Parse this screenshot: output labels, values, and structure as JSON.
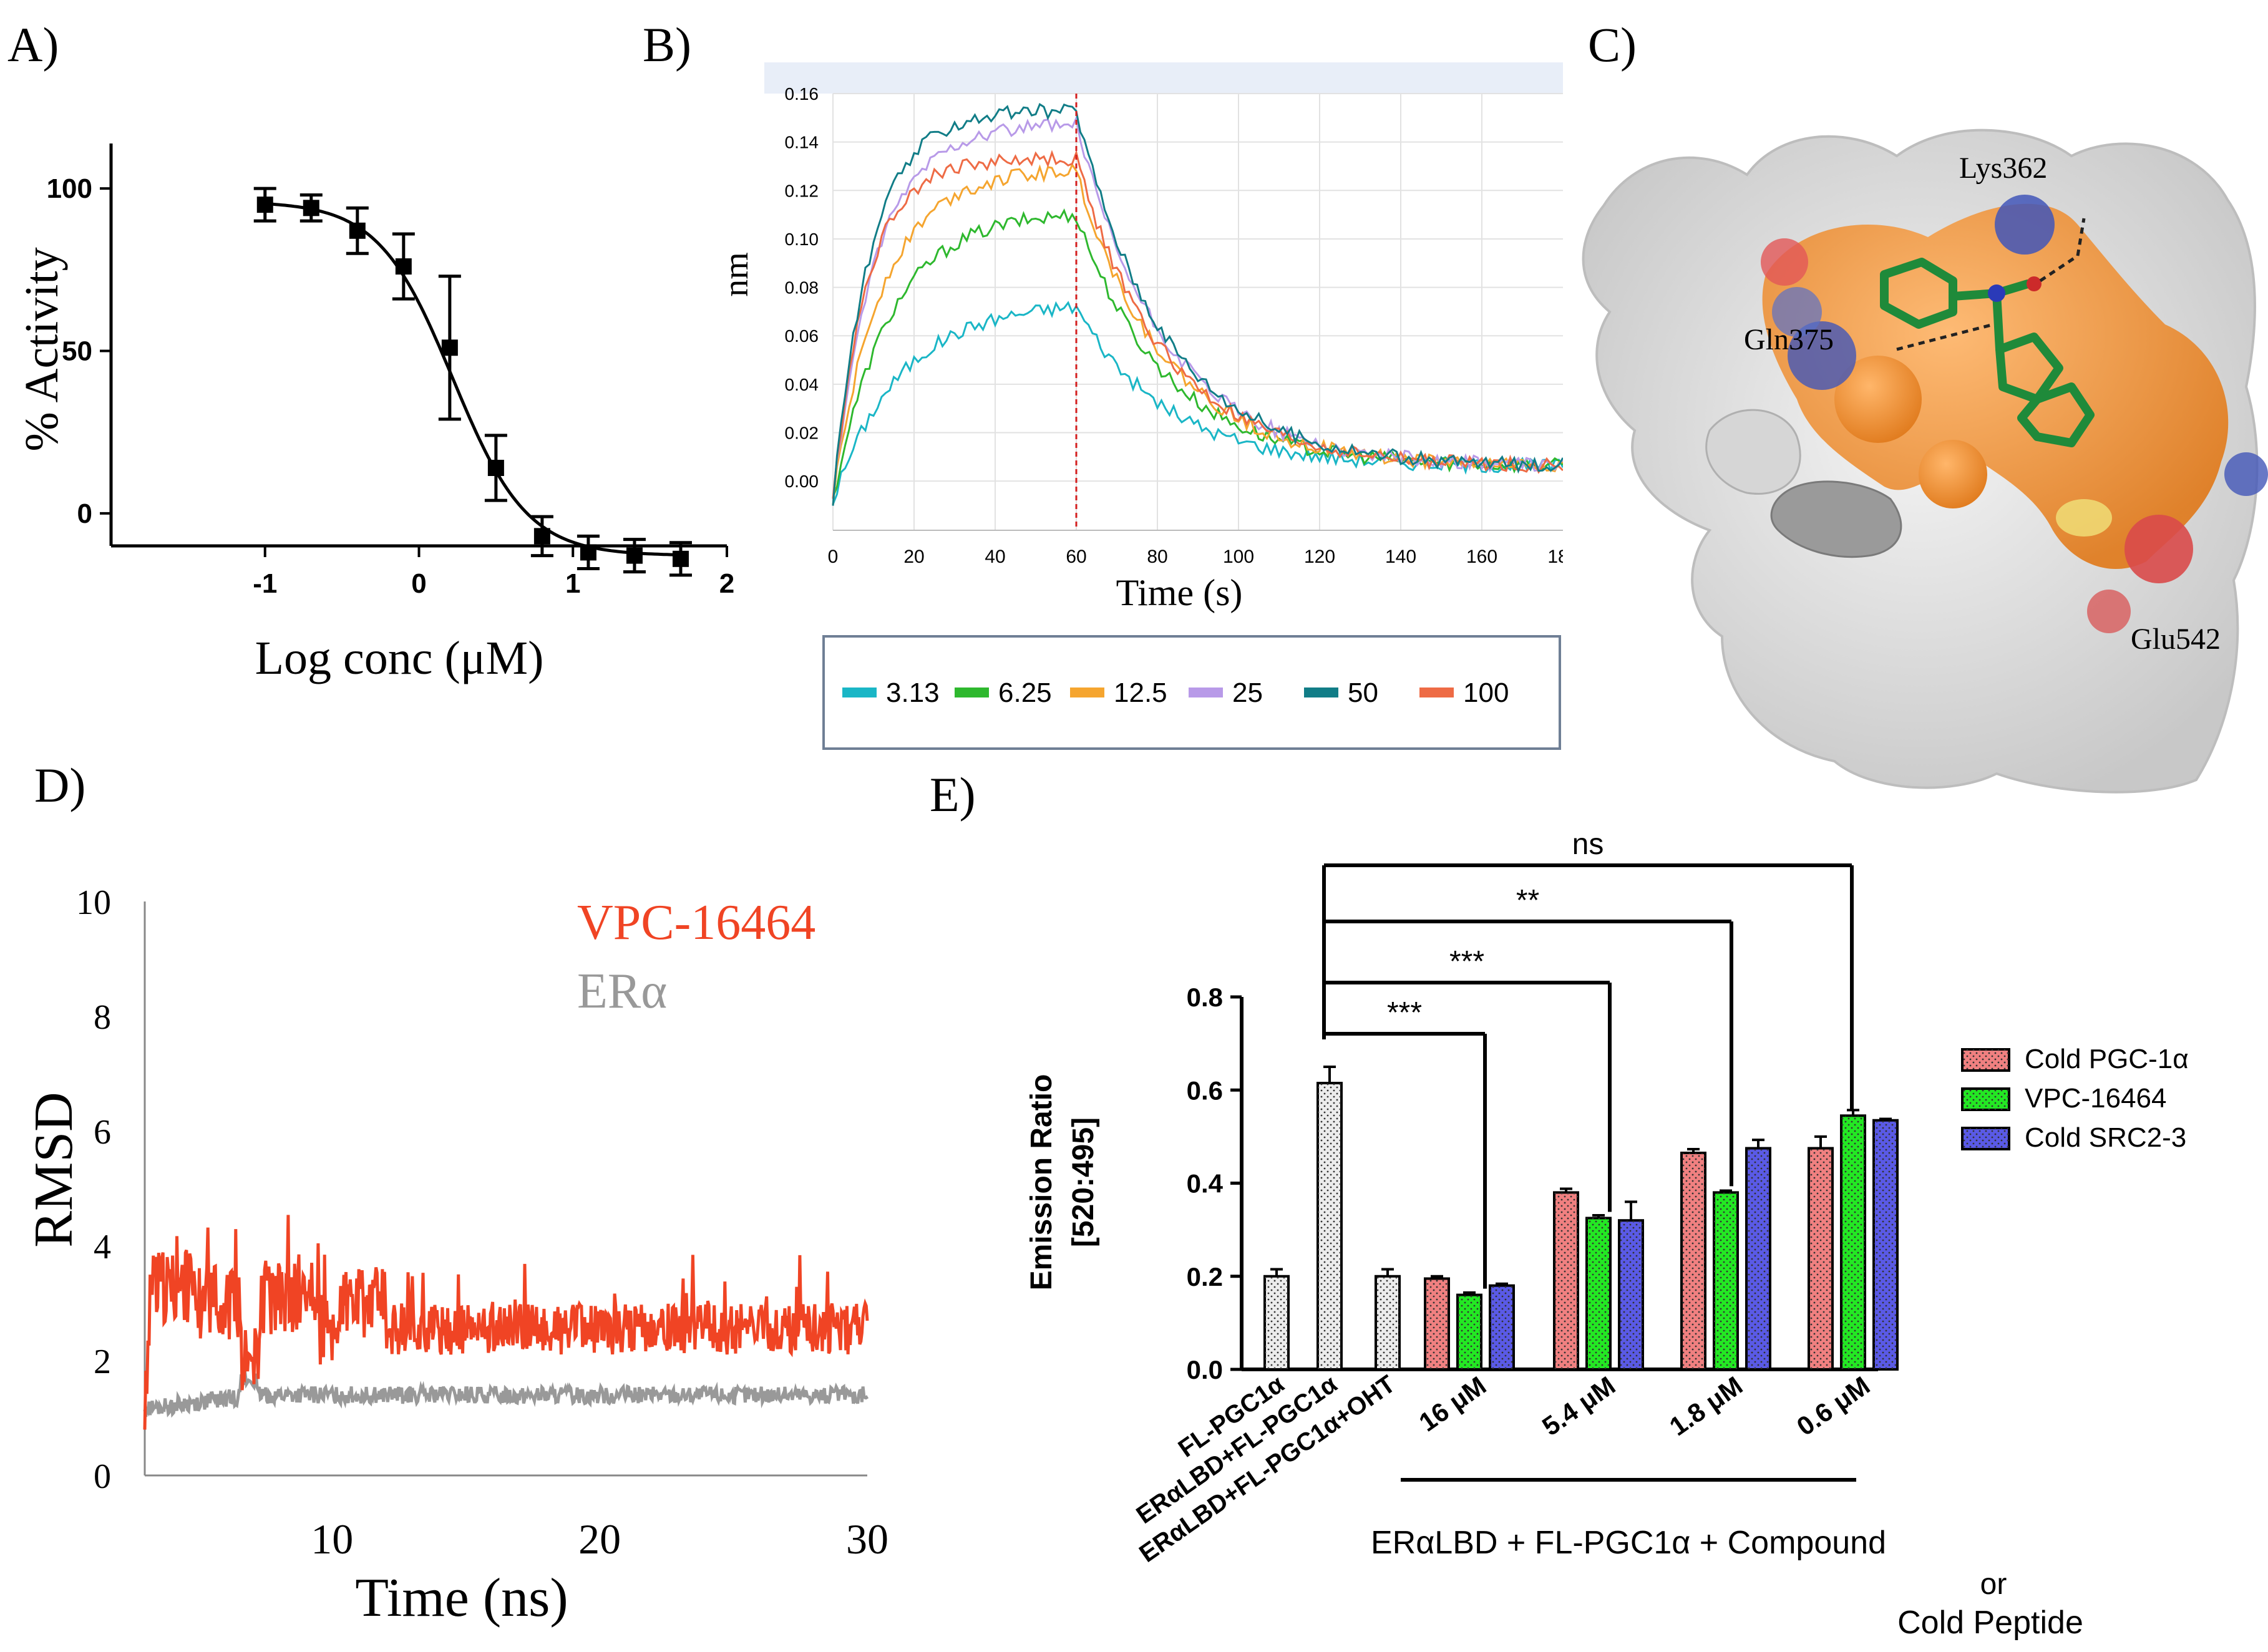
{
  "panel_labels": {
    "a": "A)",
    "b": "B)",
    "c": "C)",
    "d": "D)",
    "e": "E)"
  },
  "colors": {
    "black": "#000000",
    "vpc": "#f04424",
    "era": "#999999",
    "s3_13": "#1ab6c6",
    "s6_25": "#2eb82e",
    "s12_5": "#f5a52f",
    "s25": "#b89ae8",
    "s50": "#117d87",
    "s100": "#ee6b45",
    "cold_pgc": "#f08080",
    "vpc_green": "#23e823",
    "cold_src": "#5a5ae6",
    "control_fill": "#ececec"
  },
  "chart_data": [
    {
      "id": "A",
      "type": "scatter",
      "xlabel": "Log conc (μM)",
      "ylabel": "% Activity",
      "xlim": [
        -2,
        2
      ],
      "ylim": [
        -10,
        110
      ],
      "xticks": [
        -1,
        0,
        1,
        2
      ],
      "yticks": [
        0,
        50,
        100
      ],
      "points": [
        {
          "x": -1.0,
          "y": 95,
          "err": 5
        },
        {
          "x": -0.7,
          "y": 94,
          "err": 4
        },
        {
          "x": -0.4,
          "y": 87,
          "err": 7
        },
        {
          "x": -0.1,
          "y": 76,
          "err": 10
        },
        {
          "x": 0.2,
          "y": 51,
          "err": 22
        },
        {
          "x": 0.5,
          "y": 14,
          "err": 10
        },
        {
          "x": 0.8,
          "y": -7,
          "err": 6
        },
        {
          "x": 1.1,
          "y": -12,
          "err": 5
        },
        {
          "x": 1.4,
          "y": -13,
          "err": 5
        },
        {
          "x": 1.7,
          "y": -14,
          "err": 5
        }
      ],
      "fit": {
        "top": 96,
        "bottom": -13,
        "logIC50": 0.22,
        "hill": 1.8
      }
    },
    {
      "id": "B",
      "type": "line",
      "xlabel": "Time (s)",
      "ylabel": "nm",
      "xlim": [
        0,
        180
      ],
      "ylim": [
        -0.01,
        0.16
      ],
      "xticks": [
        0,
        20,
        40,
        60,
        80,
        100,
        120,
        140,
        160
      ],
      "xtick_last": "18",
      "yticks": [
        "0.00",
        "0.02",
        "0.04",
        "0.06",
        "0.08",
        "0.10",
        "0.12",
        "0.14",
        "0.16"
      ],
      "marker_x": 60,
      "series": [
        {
          "name": "3.13",
          "plateau": 0.072
        },
        {
          "name": "6.25",
          "plateau": 0.11
        },
        {
          "name": "12.5",
          "plateau": 0.128
        },
        {
          "name": "25",
          "plateau": 0.147
        },
        {
          "name": "50",
          "plateau": 0.153
        },
        {
          "name": "100",
          "plateau": 0.133
        }
      ]
    },
    {
      "id": "C",
      "type": "other",
      "labels": {
        "lys": "Lys362",
        "gln": "Gln375",
        "glu": "Glu542"
      }
    },
    {
      "id": "D",
      "type": "line",
      "xlabel": "Time (ns)",
      "ylabel": "RMSD",
      "xlim": [
        3,
        30
      ],
      "ylim": [
        0,
        10
      ],
      "xticks": [
        10,
        20,
        30
      ],
      "yticks": [
        0,
        2,
        4,
        6,
        8,
        10
      ],
      "series": [
        {
          "name": "VPC-16464",
          "mean": 2.6
        },
        {
          "name": "ERα",
          "mean": 1.35
        }
      ]
    },
    {
      "id": "E",
      "type": "bar",
      "ylabel": "Emission Ratio",
      "ylabel2": "[520:495]",
      "ylim": [
        0,
        0.8
      ],
      "yticks": [
        "0.0",
        "0.2",
        "0.4",
        "0.6",
        "0.8"
      ],
      "controls": [
        {
          "label": "FL-PGC1α",
          "value": 0.2,
          "err": 0.015
        },
        {
          "label": "ERαLBD+FL-PGC1α",
          "value": 0.615,
          "err": 0.035
        },
        {
          "label": "ERαLBD+FL-PGC1α+OHT",
          "value": 0.2,
          "err": 0.015
        }
      ],
      "categories": [
        "16 μM",
        "5.4 μM",
        "1.8 μM",
        "0.6 μM"
      ],
      "series": [
        {
          "name": "Cold PGC-1α",
          "values": [
            0.195,
            0.38,
            0.465,
            0.475
          ],
          "errs": [
            0.005,
            0.008,
            0.008,
            0.025
          ]
        },
        {
          "name": "VPC-16464",
          "values": [
            0.16,
            0.325,
            0.38,
            0.545
          ],
          "errs": [
            0.005,
            0.006,
            0.004,
            0.012
          ]
        },
        {
          "name": "Cold SRC2-3",
          "values": [
            0.18,
            0.32,
            0.475,
            0.535
          ],
          "errs": [
            0.004,
            0.04,
            0.018,
            0.003
          ]
        }
      ],
      "significance": [
        "***",
        "***",
        "**",
        "ns"
      ],
      "group_caption": [
        "ERαLBD + FL-PGC1α + Compound",
        "or",
        "Cold Peptide"
      ]
    }
  ]
}
